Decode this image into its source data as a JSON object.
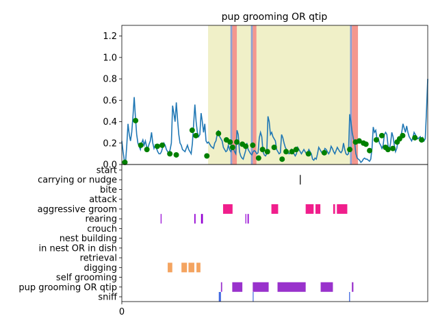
{
  "chart_data": [
    {
      "type": "line",
      "title": "pup grooming OR qtip",
      "ylim": [
        0,
        1.3
      ],
      "y_ticks": [
        "0.0",
        "0.2",
        "0.4",
        "0.6",
        "0.8",
        "1.0",
        "1.2"
      ],
      "y_tick_values": [
        0.0,
        0.2,
        0.4,
        0.6,
        0.8,
        1.0,
        1.2
      ],
      "xlim": [
        0,
        1000
      ],
      "colors": {
        "line": "#1f77b4",
        "markers": "#008000",
        "bout_span": "#f0f0c8",
        "onset_band": "#8c9fd4",
        "offset_band": "#f4978e"
      },
      "bout_spans": [
        [
          282,
          752
        ]
      ],
      "onset_bands": [
        [
          355,
          361
        ],
        [
          422,
          428
        ],
        [
          746,
          752
        ]
      ],
      "offset_bands": [
        [
          361,
          376
        ],
        [
          428,
          440
        ],
        [
          752,
          772
        ]
      ],
      "series": [
        {
          "values": [
            0.22,
            0.12,
            0.04,
            0.02,
            0.18,
            0.38,
            0.28,
            0.22,
            0.3,
            0.45,
            0.63,
            0.44,
            0.28,
            0.2,
            0.17,
            0.14,
            0.2,
            0.23,
            0.18,
            0.22,
            0.17,
            0.15,
            0.19,
            0.22,
            0.3,
            0.2,
            0.15,
            0.18,
            0.15,
            0.12,
            0.1,
            0.1,
            0.12,
            0.16,
            0.2,
            0.18,
            0.14,
            0.12,
            0.1,
            0.14,
            0.2,
            0.55,
            0.48,
            0.4,
            0.58,
            0.42,
            0.28,
            0.2,
            0.18,
            0.14,
            0.13,
            0.12,
            0.15,
            0.18,
            0.14,
            0.12,
            0.1,
            0.2,
            0.38,
            0.56,
            0.4,
            0.3,
            0.26,
            0.28,
            0.48,
            0.4,
            0.3,
            0.38,
            0.22,
            0.2,
            0.21,
            0.19,
            0.17,
            0.16,
            0.15,
            0.2,
            0.22,
            0.28,
            0.32,
            0.26,
            0.24,
            0.22,
            0.16,
            0.14,
            0.12,
            0.13,
            0.18,
            0.14,
            0.12,
            0.14,
            0.15,
            0.12,
            0.1,
            0.32,
            0.28,
            0.12,
            0.08,
            0.06,
            0.05,
            0.09,
            0.13,
            0.2,
            0.14,
            0.12,
            0.1,
            0.09,
            0.12,
            0.13,
            0.12,
            0.1,
            0.11,
            0.25,
            0.3,
            0.26,
            0.12,
            0.09,
            0.08,
            0.1,
            0.45,
            0.4,
            0.28,
            0.3,
            0.26,
            0.24,
            0.22,
            0.14,
            0.12,
            0.1,
            0.11,
            0.28,
            0.25,
            0.2,
            0.16,
            0.14,
            0.12,
            0.1,
            0.11,
            0.14,
            0.12,
            0.1,
            0.08,
            0.1,
            0.16,
            0.14,
            0.12,
            0.1,
            0.12,
            0.14,
            0.12,
            0.1,
            0.11,
            0.14,
            0.12,
            0.1,
            0.05,
            0.04,
            0.06,
            0.05,
            0.1,
            0.16,
            0.14,
            0.12,
            0.1,
            0.12,
            0.15,
            0.14,
            0.12,
            0.1,
            0.12,
            0.17,
            0.15,
            0.12,
            0.1,
            0.13,
            0.16,
            0.14,
            0.12,
            0.11,
            0.13,
            0.2,
            0.14,
            0.1,
            0.09,
            0.1,
            0.47,
            0.4,
            0.3,
            0.24,
            0.2,
            0.1,
            0.06,
            0.05,
            0.04,
            0.02,
            0.03,
            0.05,
            0.06,
            0.05,
            0.05,
            0.04,
            0.03,
            0.05,
            0.15,
            0.35,
            0.3,
            0.32,
            0.24,
            0.25,
            0.2,
            0.18,
            0.15,
            0.18,
            0.28,
            0.3,
            0.28,
            0.17,
            0.14,
            0.2,
            0.3,
            0.26,
            0.18,
            0.12,
            0.15,
            0.22,
            0.25,
            0.26,
            0.3,
            0.38,
            0.34,
            0.3,
            0.36,
            0.3,
            0.26,
            0.24,
            0.22,
            0.25,
            0.3,
            0.28,
            0.26,
            0.24,
            0.25,
            0.26,
            0.22,
            0.25,
            0.22,
            0.24,
            0.5,
            0.8
          ],
          "markers": [
            [
              10,
              0.02
            ],
            [
              45,
              0.41
            ],
            [
              62,
              0.18
            ],
            [
              82,
              0.14
            ],
            [
              116,
              0.17
            ],
            [
              132,
              0.18
            ],
            [
              157,
              0.1
            ],
            [
              178,
              0.09
            ],
            [
              230,
              0.32
            ],
            [
              242,
              0.27
            ],
            [
              278,
              0.08
            ],
            [
              316,
              0.29
            ],
            [
              342,
              0.23
            ],
            [
              354,
              0.21
            ],
            [
              362,
              0.16
            ],
            [
              376,
              0.21
            ],
            [
              394,
              0.19
            ],
            [
              405,
              0.17
            ],
            [
              428,
              0.18
            ],
            [
              447,
              0.06
            ],
            [
              460,
              0.14
            ],
            [
              476,
              0.12
            ],
            [
              498,
              0.16
            ],
            [
              524,
              0.05
            ],
            [
              537,
              0.12
            ],
            [
              556,
              0.12
            ],
            [
              570,
              0.14
            ],
            [
              610,
              0.1
            ],
            [
              662,
              0.11
            ],
            [
              745,
              0.14
            ],
            [
              764,
              0.21
            ],
            [
              776,
              0.22
            ],
            [
              790,
              0.2
            ],
            [
              798,
              0.19
            ],
            [
              810,
              0.13
            ],
            [
              832,
              0.23
            ],
            [
              850,
              0.27
            ],
            [
              862,
              0.16
            ],
            [
              870,
              0.14
            ],
            [
              886,
              0.15
            ],
            [
              900,
              0.21
            ],
            [
              908,
              0.24
            ],
            [
              918,
              0.27
            ],
            [
              958,
              0.25
            ],
            [
              980,
              0.23
            ]
          ]
        }
      ]
    },
    {
      "type": "timeline",
      "x_ticks": [
        "0"
      ],
      "x_tick_values": [
        0
      ],
      "xlim": [
        0,
        1000
      ],
      "categories": [
        "start",
        "carrying or nudge",
        "bite",
        "attack",
        "aggressive groom",
        "rearing",
        "crouch",
        "nest building",
        "in nest OR in dish",
        "retrieval",
        "digging",
        "self grooming",
        "pup grooming OR qtip",
        "sniff"
      ],
      "series": [
        {
          "name": "carrying or nudge",
          "color": "#000000",
          "intervals": [
            [
              582,
              584
            ]
          ]
        },
        {
          "name": "aggressive groom",
          "color": "#f01e8c",
          "intervals": [
            [
              331,
              362
            ],
            [
              489,
              511
            ],
            [
              601,
              627
            ],
            [
              633,
              649
            ],
            [
              691,
              697
            ],
            [
              703,
              737
            ]
          ]
        },
        {
          "name": "rearing",
          "color": "#9400d3",
          "intervals": [
            [
              127,
              129
            ],
            [
              237,
              241
            ],
            [
              259,
              265
            ],
            [
              404,
              406
            ],
            [
              411,
              415
            ]
          ]
        },
        {
          "name": "digging",
          "color": "#f4a460",
          "intervals": [
            [
              150,
              165
            ],
            [
              195,
              213
            ],
            [
              218,
              237
            ],
            [
              244,
              257
            ]
          ]
        },
        {
          "name": "pup grooming OR qtip",
          "color": "#9932cc",
          "intervals": [
            [
              324,
              328
            ],
            [
              361,
              394
            ],
            [
              428,
              480
            ],
            [
              509,
              601
            ],
            [
              650,
              690
            ],
            [
              752,
              757
            ]
          ]
        },
        {
          "name": "sniff",
          "color": "#4169e1",
          "intervals": [
            [
              317,
              324
            ],
            [
              428,
              430
            ],
            [
              743,
              746
            ]
          ]
        }
      ]
    }
  ]
}
